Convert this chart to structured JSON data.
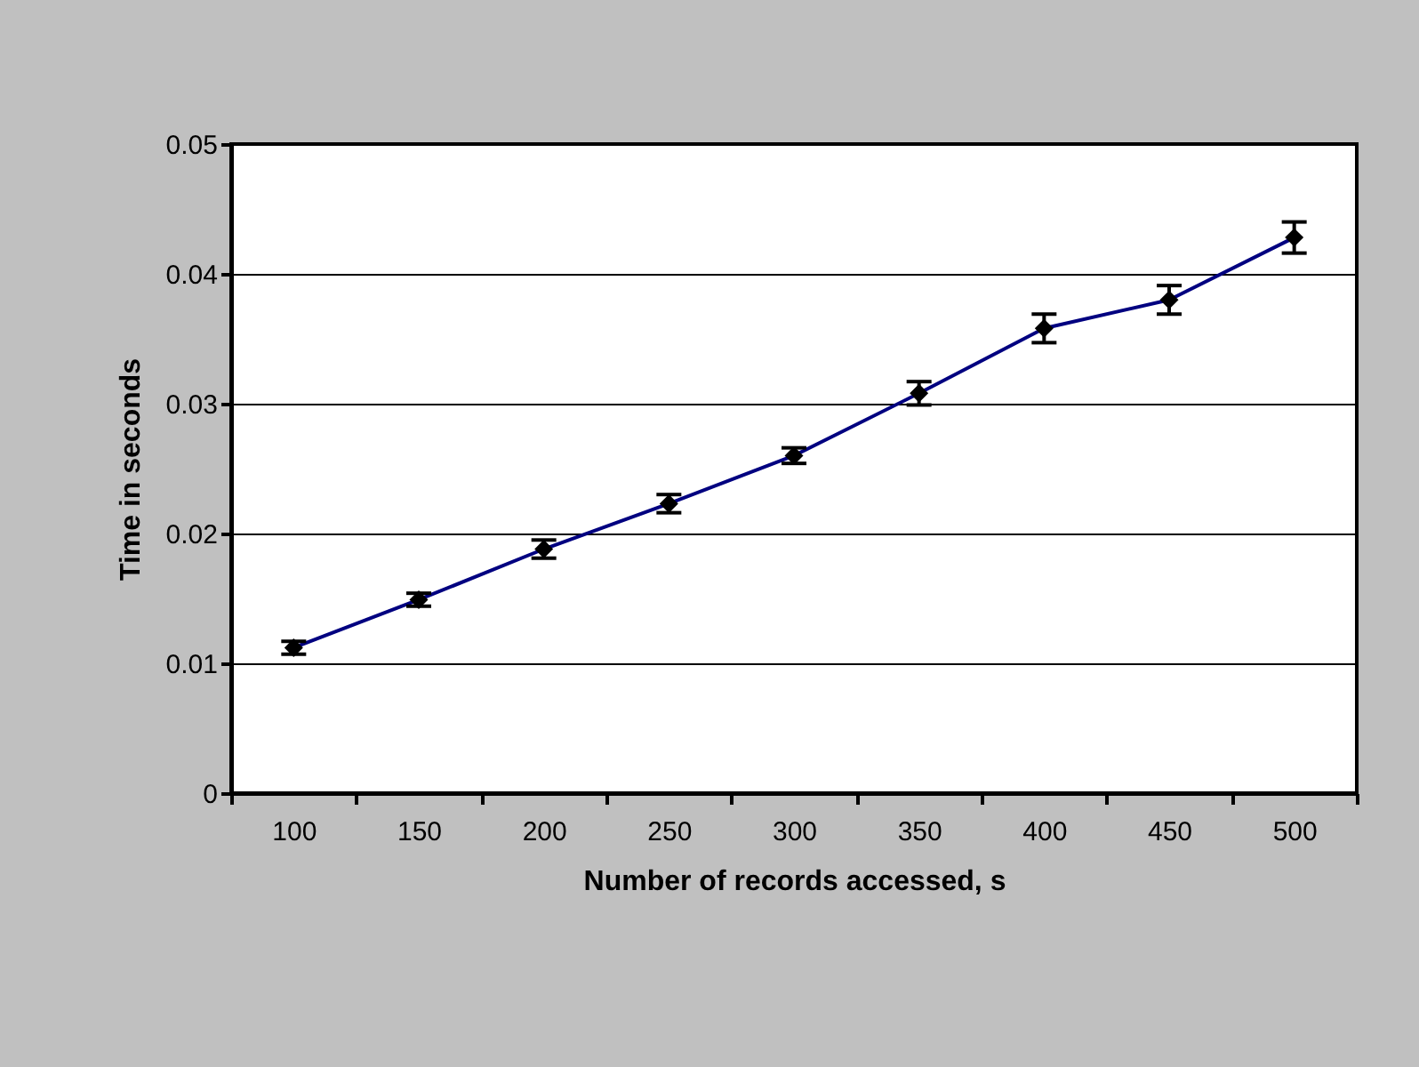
{
  "chart_data": {
    "type": "line",
    "xlabel": "Number of records accessed, s",
    "ylabel": "Time in seconds",
    "categories": [
      "100",
      "150",
      "200",
      "250",
      "300",
      "350",
      "400",
      "450",
      "500"
    ],
    "series": [
      {
        "color": "#000080",
        "values": [
          0.0112,
          0.0149,
          0.0188,
          0.0223,
          0.026,
          0.0308,
          0.0358,
          0.038,
          0.0428
        ],
        "errors": [
          0.0005,
          0.0005,
          0.0007,
          0.0007,
          0.0006,
          0.0009,
          0.0011,
          0.0011,
          0.0012
        ]
      }
    ],
    "ylim": [
      0,
      0.05
    ],
    "yticks": [
      0,
      0.01,
      0.02,
      0.03,
      0.04,
      0.05
    ],
    "grid": "y",
    "marker": "diamond",
    "line_style": "solid"
  }
}
